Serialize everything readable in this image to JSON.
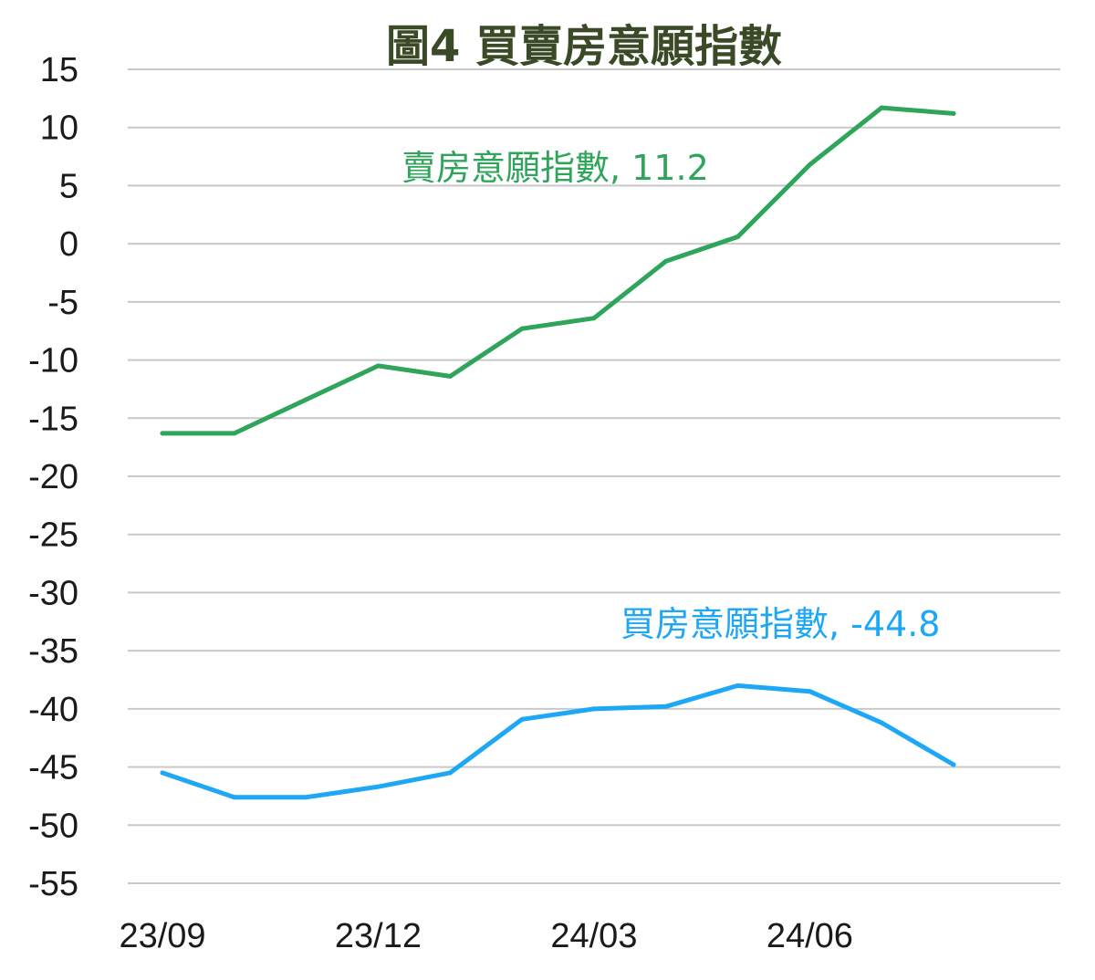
{
  "chart_data": {
    "type": "line",
    "title": "圖4  買賣房意願指數",
    "xlabel": "",
    "ylabel": "",
    "x": [
      "23/09",
      "23/10",
      "23/11",
      "23/12",
      "24/01",
      "24/02",
      "24/03",
      "24/04",
      "24/05",
      "24/06",
      "24/07",
      "24/08"
    ],
    "x_tick_labels": [
      "23/09",
      "23/12",
      "24/03",
      "24/06"
    ],
    "y_ticks": [
      15,
      10,
      5,
      0,
      -5,
      -10,
      -15,
      -20,
      -25,
      -30,
      -35,
      -40,
      -45,
      -50,
      -55
    ],
    "ylim": [
      -55,
      15
    ],
    "grid": true,
    "series": [
      {
        "name": "賣房意願指數",
        "label": "賣房意願指數, 11.2",
        "color": "#2ea55a",
        "values": [
          -16.3,
          -16.3,
          -13.4,
          -10.5,
          -11.4,
          -7.3,
          -6.4,
          -1.5,
          0.6,
          6.8,
          11.7,
          11.2
        ]
      },
      {
        "name": "買房意願指數",
        "label": "買房意願指數, -44.8",
        "color": "#1ea7f5",
        "values": [
          -45.5,
          -47.6,
          -47.6,
          -46.7,
          -45.5,
          -40.9,
          -40.0,
          -39.8,
          -38.0,
          -38.5,
          -41.2,
          -44.8
        ]
      }
    ]
  }
}
